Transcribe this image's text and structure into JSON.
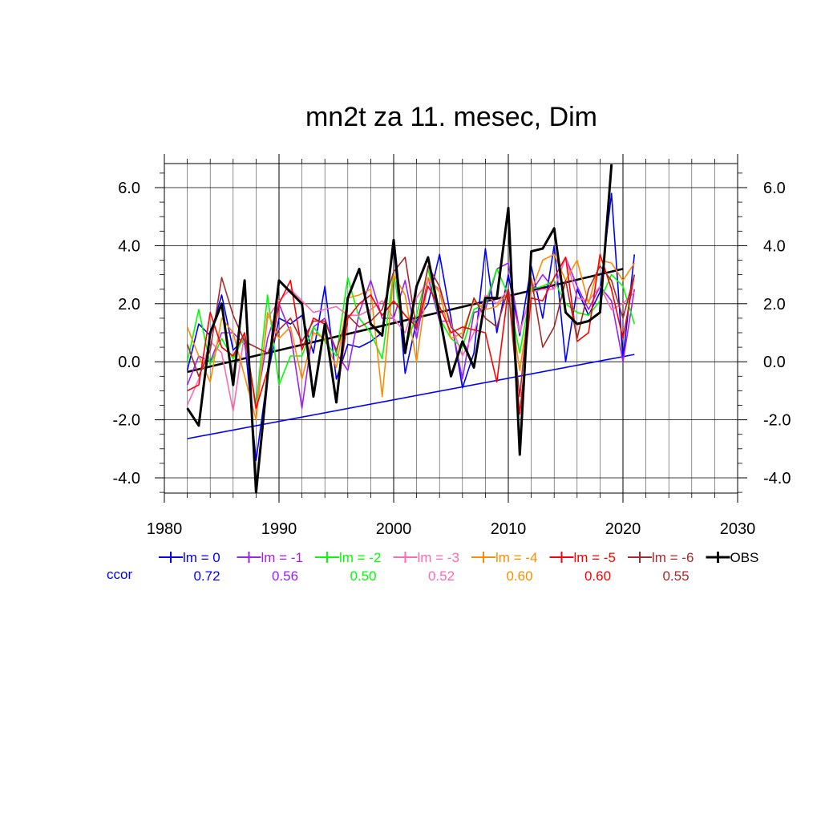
{
  "chart_data": {
    "type": "line",
    "title": "mn2t za 11. mesec, Dim",
    "xlabel": "",
    "ylabel": "",
    "xlim": [
      1980,
      2030
    ],
    "ylim": [
      -4.5,
      6.8
    ],
    "x_ticks": [
      1980,
      1990,
      2000,
      2010,
      2020,
      2030
    ],
    "x_tick_labels": [
      "1980",
      "1990",
      "2000",
      "2010",
      "2020",
      "2030"
    ],
    "y_ticks": [
      -4,
      -2,
      0,
      2,
      4,
      6
    ],
    "y_tick_labels": [
      "-4.0",
      "-2.0",
      "0.0",
      "2.0",
      "4.0",
      "6.0"
    ],
    "grid": true,
    "legend_position": "bottom",
    "x": [
      1982,
      1983,
      1984,
      1985,
      1986,
      1987,
      1988,
      1989,
      1990,
      1991,
      1992,
      1993,
      1994,
      1995,
      1996,
      1997,
      1998,
      1999,
      2000,
      2001,
      2002,
      2003,
      2004,
      2005,
      2006,
      2007,
      2008,
      2009,
      2010,
      2011,
      2012,
      2013,
      2014,
      2015,
      2016,
      2017,
      2018,
      2019,
      2020,
      2021
    ],
    "series": [
      {
        "name": "lm = 0",
        "color": "#0000ff",
        "width": 1.6,
        "values": [
          -0.3,
          1.3,
          0.9,
          2.3,
          0.4,
          0.8,
          -3.4,
          -0.5,
          1.5,
          1.3,
          1.6,
          0.3,
          2.6,
          -0.6,
          0.6,
          0.5,
          0.7,
          1.0,
          4.0,
          -0.4,
          1.4,
          2.0,
          3.7,
          1.5,
          -0.9,
          0.3,
          3.9,
          1.0,
          3.0,
          0.9,
          3.3,
          1.5,
          4.0,
          0.0,
          2.5,
          1.6,
          2.4,
          5.8,
          0.1,
          3.7
        ]
      },
      {
        "name": "lm = -1",
        "color": "#a020f0",
        "width": 1.6,
        "values": [
          -0.8,
          0.2,
          0.0,
          1.0,
          1.0,
          0.6,
          -1.5,
          0.8,
          2.0,
          1.0,
          -1.6,
          1.2,
          1.5,
          0.3,
          -0.3,
          1.7,
          2.8,
          1.5,
          1.5,
          2.8,
          0.8,
          2.9,
          1.4,
          1.4,
          -0.6,
          1.7,
          1.8,
          3.2,
          3.4,
          1.0,
          2.4,
          3.0,
          2.5,
          3.6,
          2.6,
          1.8,
          2.6,
          2.1,
          0.0,
          2.5
        ]
      },
      {
        "name": "lm = -2",
        "color": "#00ff00",
        "width": 1.6,
        "values": [
          0.0,
          1.8,
          -0.1,
          0.8,
          0.1,
          0.9,
          -1.5,
          2.3,
          -0.8,
          0.2,
          0.2,
          1.2,
          0.7,
          0.2,
          2.9,
          1.5,
          1.0,
          0.1,
          3.1,
          0.5,
          1.6,
          3.2,
          1.5,
          0.8,
          0.5,
          1.8,
          2.0,
          3.2,
          2.3,
          0.3,
          2.5,
          2.6,
          2.8,
          2.0,
          1.7,
          1.6,
          2.1,
          3.0,
          2.6,
          1.3
        ]
      },
      {
        "name": "lm = -3",
        "color": "#ff69b4",
        "width": 1.6,
        "values": [
          -1.5,
          -0.6,
          0.7,
          0.3,
          -1.7,
          1.0,
          -1.7,
          1.5,
          2.1,
          2.5,
          2.1,
          1.7,
          1.8,
          1.9,
          1.6,
          1.6,
          1.8,
          2.1,
          1.5,
          1.0,
          2.2,
          2.8,
          2.5,
          1.3,
          0.2,
          1.0,
          2.3,
          2.0,
          2.5,
          1.0,
          2.4,
          2.5,
          2.5,
          3.6,
          2.2,
          2.1,
          2.6,
          1.8,
          2.0,
          2.4
        ]
      },
      {
        "name": "lm = -4",
        "color": "#ff8c00",
        "width": 1.6,
        "values": [
          1.2,
          0.2,
          -0.7,
          1.5,
          1.0,
          -0.5,
          -2.0,
          1.7,
          0.8,
          1.2,
          -0.6,
          1.0,
          0.8,
          -0.2,
          2.2,
          2.3,
          2.5,
          -1.2,
          3.0,
          2.3,
          0.0,
          2.9,
          2.4,
          0.8,
          1.0,
          2.1,
          1.8,
          1.9,
          2.4,
          -0.3,
          2.4,
          3.5,
          3.7,
          2.8,
          3.5,
          2.0,
          3.5,
          3.4,
          2.8,
          3.4
        ]
      },
      {
        "name": "lm = -5",
        "color": "#ff0000",
        "width": 1.6,
        "values": [
          -1.0,
          -0.8,
          1.7,
          0.5,
          0.2,
          1.0,
          -1.6,
          -0.3,
          2.0,
          2.8,
          0.4,
          1.5,
          1.3,
          -1.3,
          1.5,
          2.0,
          2.3,
          1.6,
          2.1,
          1.6,
          1.2,
          2.6,
          1.9,
          1.0,
          1.2,
          1.1,
          1.0,
          -0.7,
          2.5,
          -1.8,
          2.2,
          2.1,
          2.9,
          3.6,
          0.7,
          1.0,
          3.7,
          2.5,
          0.8,
          3.0
        ]
      },
      {
        "name": "lm = -6",
        "color": "#a52a2a",
        "width": 1.6,
        "values": [
          0.6,
          -0.5,
          0.4,
          2.9,
          1.6,
          0.7,
          0.5,
          0.3,
          1.1,
          1.5,
          0.7,
          1.4,
          1.4,
          0.4,
          1.6,
          1.2,
          1.4,
          1.8,
          3.1,
          3.6,
          1.1,
          3.3,
          2.6,
          1.2,
          0.8,
          2.2,
          1.5,
          1.2,
          2.5,
          -1.2,
          2.9,
          0.5,
          1.2,
          2.8,
          0.8,
          2.5,
          3.3,
          2.8,
          1.5,
          3.0
        ]
      },
      {
        "name": "OBS",
        "color": "#000000",
        "width": 3,
        "values": [
          -1.6,
          -2.2,
          1.0,
          2.0,
          -0.8,
          2.8,
          -4.5,
          -0.5,
          2.8,
          2.4,
          2.0,
          -1.2,
          1.3,
          -1.4,
          2.2,
          3.2,
          1.3,
          0.9,
          4.2,
          0.3,
          2.6,
          3.6,
          1.6,
          -0.5,
          0.7,
          -0.2,
          2.2,
          2.2,
          5.3,
          -3.2,
          3.8,
          3.9,
          4.6,
          1.7,
          1.3,
          1.4,
          1.7,
          6.8,
          null,
          null
        ]
      }
    ],
    "trend_lines": [
      {
        "name": "obs-trend",
        "color": "#000000",
        "width": 2.6,
        "x": [
          1982,
          2020
        ],
        "y": [
          -0.35,
          3.2
        ]
      },
      {
        "name": "model-trend",
        "color": "#0000ff",
        "width": 1.6,
        "x": [
          1982,
          2021
        ],
        "y": [
          -2.65,
          0.25
        ]
      }
    ],
    "ccor": {
      "label": "ccor",
      "label_color": "#0000ff",
      "values": [
        "0.72",
        "0.56",
        "0.50",
        "0.52",
        "0.60",
        "0.60",
        "0.55"
      ]
    }
  }
}
